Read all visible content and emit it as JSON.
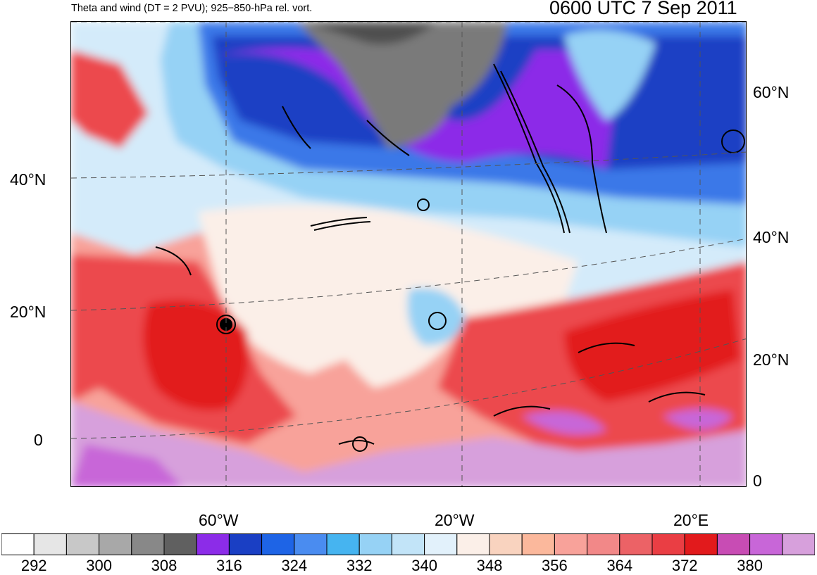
{
  "header": {
    "left_title": "Theta and wind (DT = 2 PVU); 925−850-hPa rel. vort.",
    "right_title": "0600 UTC 7 Sep 2011"
  },
  "axes": {
    "left_lat_labels": [
      "40°N",
      "20°N",
      "0"
    ],
    "right_lat_labels": [
      "60°N",
      "40°N",
      "20°N",
      "0"
    ],
    "lon_labels": [
      "60°W",
      "20°W",
      "20°E"
    ]
  },
  "colorbar": {
    "labels": [
      "292",
      "300",
      "308",
      "316",
      "324",
      "332",
      "340",
      "348",
      "356",
      "364",
      "372",
      "380"
    ],
    "colors": [
      "#ffffff",
      "#e6e6e6",
      "#c8c8c8",
      "#a8a8a8",
      "#888888",
      "#606060",
      "#8c2ce8",
      "#1a3fc4",
      "#1e64e6",
      "#4a8cf0",
      "#46b4f0",
      "#96d2f5",
      "#c2e4f8",
      "#e2f1fb",
      "#fbefe8",
      "#f9d3bf",
      "#fbb89c",
      "#f8a29a",
      "#f28888",
      "#ec6266",
      "#ea3e44",
      "#e21a1c",
      "#c84cb4",
      "#c866d8",
      "#d7a0dc"
    ]
  },
  "map": {
    "region": "North Atlantic",
    "colors": {
      "grey": "#7a7a7a",
      "dark_grey": "#505050",
      "purple": "#8c2ce8",
      "dark_blue": "#1a3fc4",
      "blue": "#3a78e8",
      "light_blue": "#96d2f5",
      "pale_blue": "#d4ebfa",
      "cream": "#fbefe8",
      "salmon": "#f8a29a",
      "red": "#ec4a4e",
      "dark_red": "#e21a1c",
      "magenta": "#c866d8",
      "lilac": "#d7a0dc"
    }
  }
}
